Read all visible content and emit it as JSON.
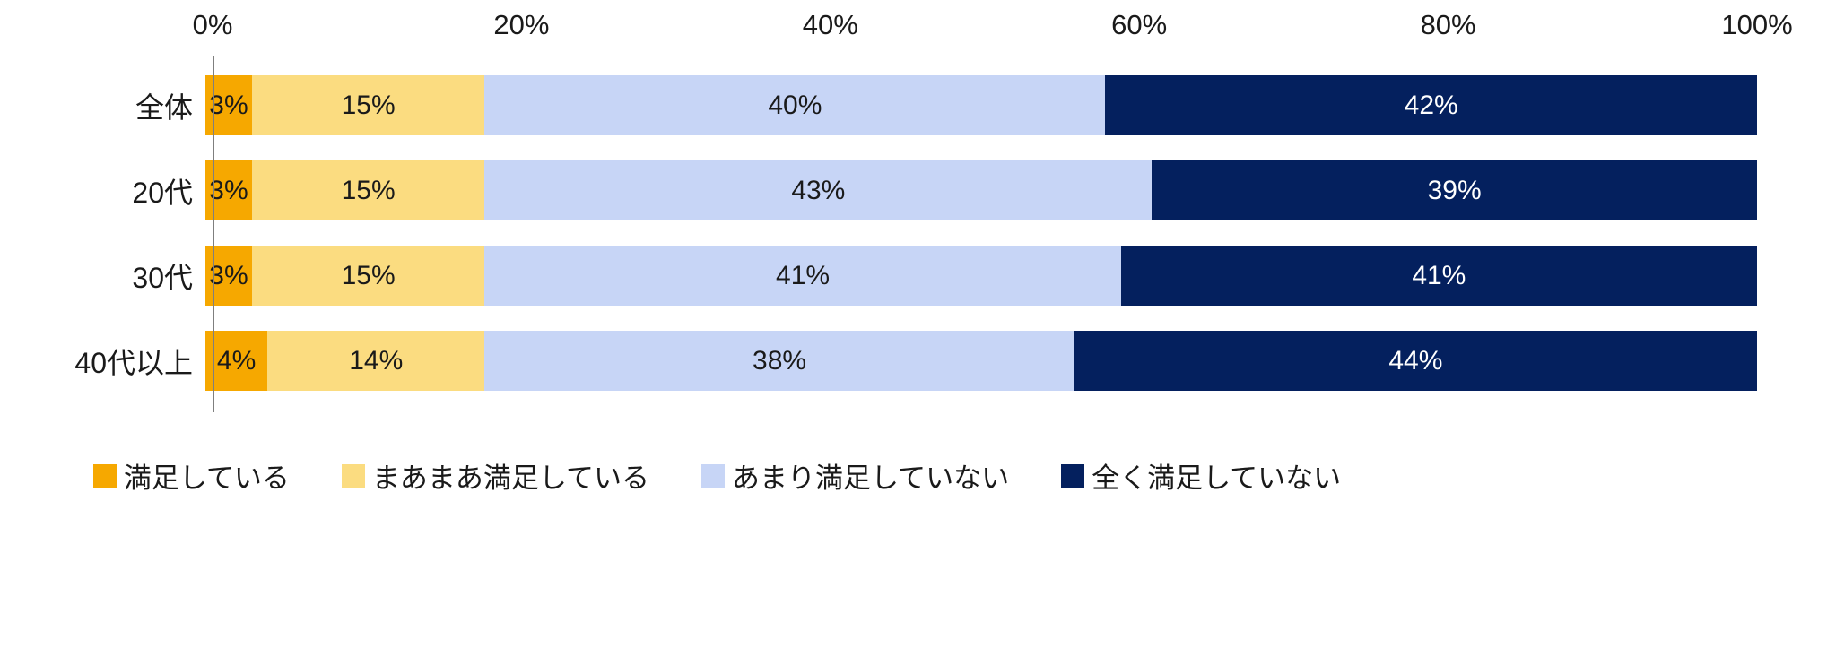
{
  "chart_data": {
    "type": "bar",
    "orientation": "horizontal-stacked",
    "title": "",
    "categories": [
      "全体",
      "20代",
      "30代",
      "40代以上"
    ],
    "series": [
      {
        "name": "満足している",
        "color": "#F6A800",
        "label_color": "#1a1a1a",
        "values": [
          3,
          3,
          3,
          4
        ]
      },
      {
        "name": "まあまあ満足している",
        "color": "#FBDC80",
        "label_color": "#1a1a1a",
        "values": [
          15,
          15,
          15,
          14
        ]
      },
      {
        "name": "あまり満足していない",
        "color": "#C7D5F6",
        "label_color": "#1a1a1a",
        "values": [
          40,
          43,
          41,
          38
        ]
      },
      {
        "name": "全く満足していない",
        "color": "#04205E",
        "label_color": "#ffffff",
        "values": [
          42,
          39,
          41,
          44
        ]
      }
    ],
    "x_axis": {
      "position": "top",
      "min": 0,
      "max": 100,
      "ticks": [
        "0%",
        "20%",
        "40%",
        "60%",
        "80%",
        "100%"
      ]
    },
    "grid": false,
    "legend": {
      "position": "bottom"
    },
    "axis_line_color": "#7f7f7f"
  }
}
